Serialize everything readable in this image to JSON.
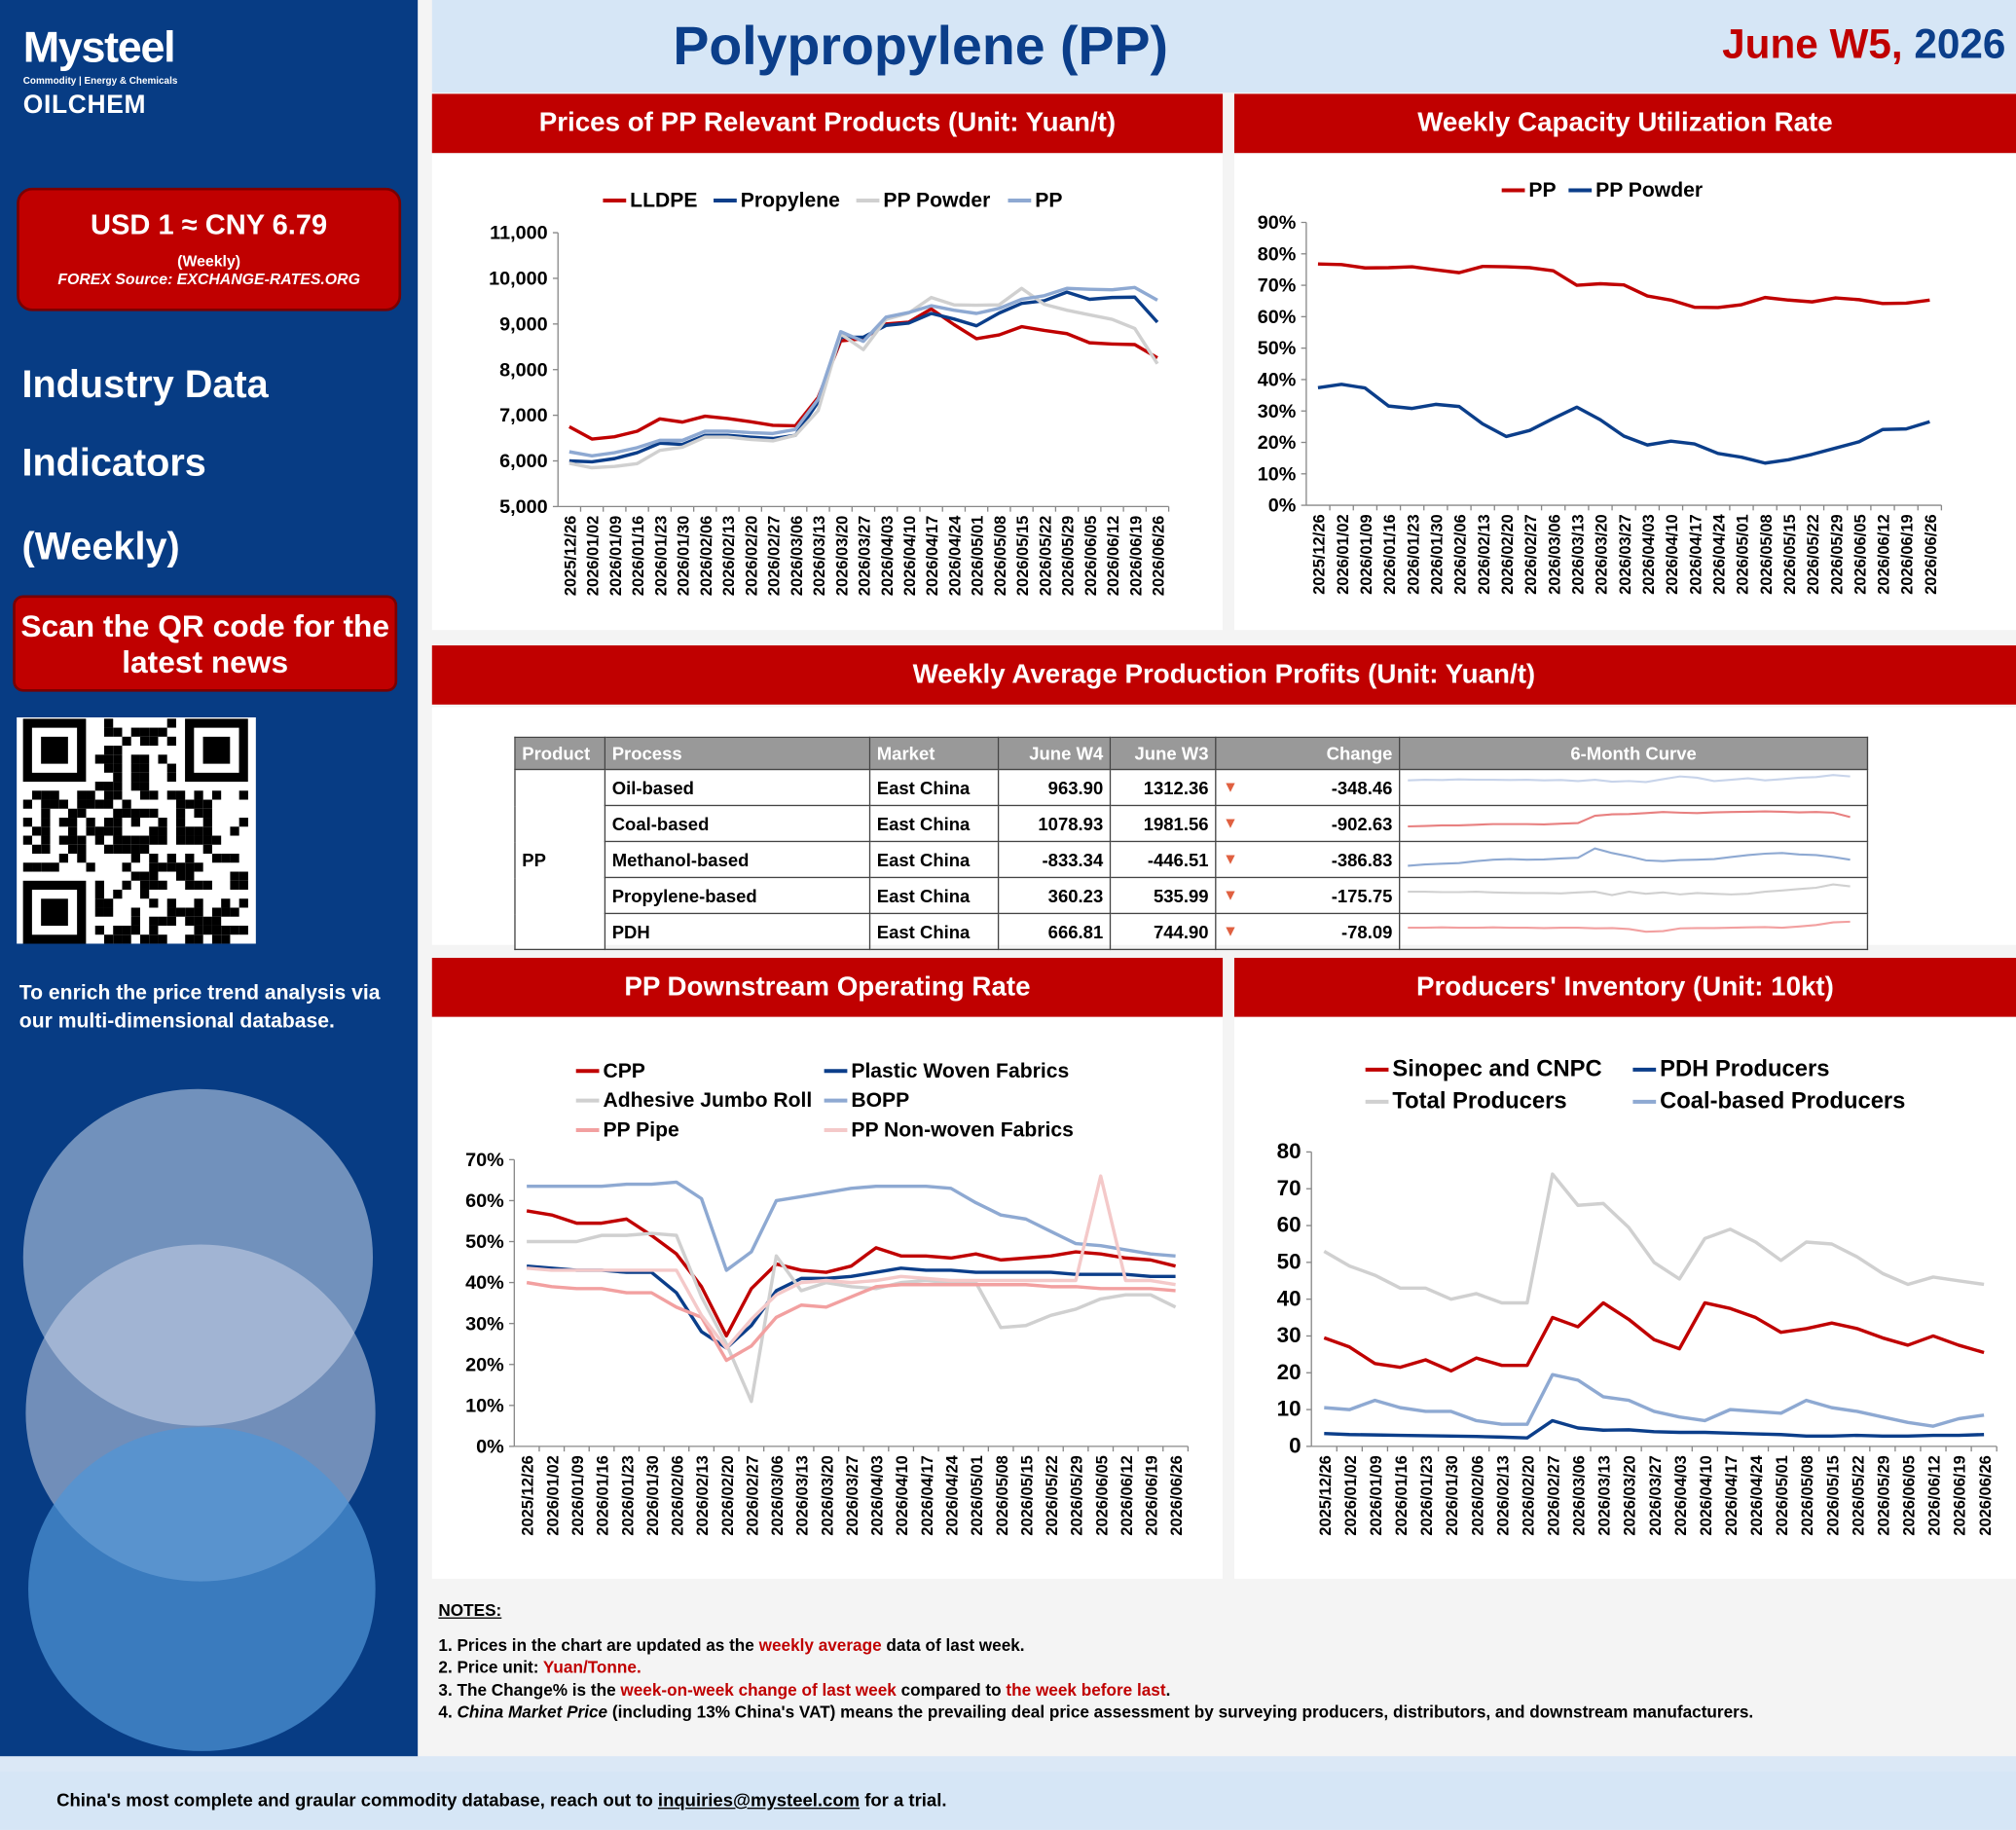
{
  "logo": {
    "brand": "Mysteel",
    "tagline": "Commodity | Energy & Chemicals",
    "sub": "OILCHEM"
  },
  "fx": {
    "rate": "USD 1 ≈ CNY 6.79",
    "period": "(Weekly)",
    "source": "FOREX Source: EXCHANGE-RATES.ORG"
  },
  "sidebar": {
    "h1": "Industry Data",
    "h2": "Indicators",
    "h3": "(Weekly)",
    "qr_button": "Scan the QR code for the latest news",
    "enrich": "To enrich the price trend analysis via our multi-dimensional database."
  },
  "header": {
    "title": "Polypropylene (PP)",
    "date_red": "June W5,",
    "date_blue": "2026"
  },
  "colors": {
    "red": "#c00000",
    "blue": "#0b3e8a",
    "navy": "#073c84",
    "lightgray": "#d0d0d0",
    "lightblue": "#8ea9d2",
    "pink": "#f2a0a0",
    "lightpink": "#f4c9c9",
    "gray": "#c8c8c8"
  },
  "dates": [
    "2025/12/26",
    "2026/01/02",
    "2026/01/09",
    "2026/01/16",
    "2026/01/23",
    "2026/01/30",
    "2026/02/06",
    "2026/02/13",
    "2026/02/20",
    "2026/02/27",
    "2026/03/06",
    "2026/03/13",
    "2026/03/20",
    "2026/03/27",
    "2026/04/03",
    "2026/04/10",
    "2026/04/17",
    "2026/04/24",
    "2026/05/01",
    "2026/05/08",
    "2026/05/15",
    "2026/05/22",
    "2026/05/29",
    "2026/06/05",
    "2026/06/12",
    "2026/06/19",
    "2026/06/26"
  ],
  "chart_data": [
    {
      "type": "line",
      "title": "Prices of  PP Relevant Products (Unit: Yuan/t)",
      "ylim": [
        5000,
        11000
      ],
      "yticks": [
        "5,000",
        "6,000",
        "7,000",
        "8,000",
        "9,000",
        "10,000",
        "11,000"
      ],
      "series": [
        {
          "name": "LLDPE",
          "color": "#c00000",
          "values": [
            6750,
            6480,
            6530,
            6650,
            6920,
            6850,
            6980,
            6930,
            6860,
            6780,
            6770,
            7390,
            8630,
            8680,
            9000,
            9040,
            9330,
            8990,
            8680,
            8760,
            8940,
            8860,
            8790,
            8590,
            8560,
            8550,
            8260
          ]
        },
        {
          "name": "Propylene",
          "color": "#0b3e8a",
          "values": [
            6000,
            5980,
            6050,
            6180,
            6390,
            6360,
            6560,
            6560,
            6520,
            6490,
            6560,
            7290,
            8710,
            8710,
            8970,
            9020,
            9230,
            9110,
            8960,
            9240,
            9450,
            9510,
            9700,
            9540,
            9580,
            9590,
            9040
          ]
        },
        {
          "name": "PP Powder",
          "color": "#d0d0d0",
          "values": [
            5950,
            5850,
            5880,
            5940,
            6230,
            6300,
            6520,
            6520,
            6470,
            6440,
            6560,
            7100,
            8780,
            8440,
            9100,
            9240,
            9580,
            9420,
            9410,
            9420,
            9780,
            9430,
            9300,
            9200,
            9100,
            8900,
            8130
          ]
        },
        {
          "name": "PP",
          "color": "#8ea9d2",
          "values": [
            6200,
            6110,
            6180,
            6290,
            6450,
            6450,
            6650,
            6650,
            6620,
            6600,
            6690,
            7350,
            8830,
            8620,
            9150,
            9250,
            9400,
            9300,
            9230,
            9340,
            9540,
            9620,
            9780,
            9760,
            9750,
            9800,
            9520
          ]
        }
      ]
    },
    {
      "type": "line",
      "title": "Weekly Capacity Utilization Rate",
      "ylim": [
        0,
        90
      ],
      "yticks": [
        "0%",
        "10%",
        "20%",
        "30%",
        "40%",
        "50%",
        "60%",
        "70%",
        "80%",
        "90%"
      ],
      "series": [
        {
          "name": "PP",
          "color": "#c00000",
          "values": [
            76.8,
            76.6,
            75.5,
            75.6,
            75.9,
            74.9,
            74.0,
            76.0,
            75.9,
            75.6,
            74.6,
            70.0,
            70.5,
            70.1,
            66.6,
            65.3,
            63.0,
            62.9,
            63.8,
            66.1,
            65.3,
            64.7,
            66.0,
            65.4,
            64.2,
            64.3,
            65.3
          ]
        },
        {
          "name": "PP Powder",
          "color": "#0b3e8a",
          "values": [
            37.4,
            38.5,
            37.3,
            31.6,
            30.8,
            32.1,
            31.4,
            25.9,
            21.9,
            23.8,
            27.6,
            31.2,
            27.2,
            22.0,
            19.2,
            20.4,
            19.5,
            16.5,
            15.3,
            13.4,
            14.5,
            16.2,
            18.2,
            20.2,
            24.1,
            24.3,
            26.6
          ]
        }
      ]
    },
    {
      "type": "line",
      "title": "PP Downstream Operating Rate",
      "ylim": [
        0,
        70
      ],
      "yticks": [
        "0%",
        "10%",
        "20%",
        "30%",
        "40%",
        "50%",
        "60%",
        "70%"
      ],
      "series": [
        {
          "name": "CPP",
          "color": "#c00000",
          "values": [
            57.5,
            56.5,
            54.5,
            54.5,
            55.5,
            51.5,
            47.0,
            39.0,
            27.0,
            38.5,
            44.5,
            43.0,
            42.5,
            44.0,
            48.5,
            46.5,
            46.5,
            46.0,
            47.0,
            45.5,
            46.0,
            46.5,
            47.5,
            47.0,
            46.0,
            45.5,
            44.0
          ]
        },
        {
          "name": "Plastic Woven Fabrics",
          "color": "#0b3e8a",
          "values": [
            44.0,
            43.5,
            43.0,
            43.0,
            42.5,
            42.5,
            37.5,
            28.0,
            24.0,
            29.5,
            38.0,
            41.0,
            41.0,
            41.5,
            42.5,
            43.5,
            43.0,
            43.0,
            42.5,
            42.5,
            42.5,
            42.5,
            42.0,
            42.0,
            42.0,
            41.5,
            41.5
          ]
        },
        {
          "name": "Adhesive Jumbo Roll",
          "color": "#d0d0d0",
          "values": [
            50.0,
            50.0,
            50.0,
            51.5,
            51.5,
            52.0,
            51.5,
            36.5,
            25.0,
            11.0,
            46.5,
            38.0,
            40.0,
            39.0,
            38.5,
            40.0,
            40.5,
            40.0,
            40.0,
            29.0,
            29.5,
            32.0,
            33.5,
            36.0,
            37.0,
            37.0,
            34.0
          ]
        },
        {
          "name": "BOPP",
          "color": "#8ea9d2",
          "values": [
            63.5,
            63.5,
            63.5,
            63.5,
            64.0,
            64.0,
            64.5,
            60.5,
            43.0,
            47.5,
            60.0,
            61.0,
            62.0,
            63.0,
            63.5,
            63.5,
            63.5,
            63.0,
            59.5,
            56.5,
            55.5,
            52.5,
            49.5,
            49.0,
            48.0,
            47.0,
            46.5
          ]
        },
        {
          "name": "PP Pipe",
          "color": "#f2a0a0",
          "values": [
            40.0,
            39.0,
            38.5,
            38.5,
            37.5,
            37.5,
            34.0,
            31.5,
            21.0,
            24.5,
            31.5,
            34.5,
            34.0,
            36.5,
            39.0,
            39.5,
            39.5,
            39.5,
            39.5,
            39.5,
            39.5,
            39.0,
            39.0,
            38.5,
            38.5,
            38.5,
            38.0
          ]
        },
        {
          "name": "PP Non-woven Fabrics",
          "color": "#f4c9c9",
          "values": [
            43.5,
            43.0,
            43.0,
            43.0,
            43.0,
            43.0,
            43.0,
            32.0,
            24.0,
            31.0,
            37.0,
            40.0,
            40.5,
            40.0,
            40.5,
            41.5,
            41.0,
            40.5,
            40.5,
            40.5,
            40.5,
            40.5,
            40.5,
            66.0,
            40.5,
            40.5,
            39.5
          ]
        }
      ]
    },
    {
      "type": "line",
      "title": "Producers' Inventory (Unit: 10kt)",
      "ylim": [
        0,
        80
      ],
      "yticks": [
        "0",
        "10",
        "20",
        "30",
        "40",
        "50",
        "60",
        "70",
        "80"
      ],
      "series": [
        {
          "name": "Sinopec and CNPC",
          "color": "#c00000",
          "values": [
            29.5,
            27.0,
            22.5,
            21.5,
            23.5,
            20.5,
            24.0,
            22.0,
            22.0,
            35.0,
            32.5,
            39.0,
            34.5,
            29.0,
            26.5,
            39.0,
            37.5,
            35.0,
            31.0,
            32.0,
            33.5,
            32.0,
            29.5,
            27.5,
            30.0,
            27.5,
            25.5
          ]
        },
        {
          "name": "PDH Producers",
          "color": "#0b3e8a",
          "values": [
            3.5,
            3.2,
            3.1,
            3.0,
            2.9,
            2.8,
            2.7,
            2.5,
            2.3,
            7.0,
            5.0,
            4.4,
            4.5,
            4.0,
            3.8,
            3.8,
            3.6,
            3.4,
            3.2,
            2.8,
            2.8,
            3.0,
            2.8,
            2.8,
            3.0,
            3.0,
            3.2
          ]
        },
        {
          "name": "Total Producers",
          "color": "#d0d0d0",
          "values": [
            53.0,
            49.0,
            46.5,
            43.0,
            43.0,
            40.0,
            41.5,
            39.0,
            39.0,
            74.0,
            65.5,
            66.0,
            59.5,
            50.0,
            45.5,
            56.5,
            59.0,
            55.5,
            50.5,
            55.5,
            55.0,
            51.5,
            47.0,
            44.0,
            46.0,
            45.0,
            44.0
          ]
        },
        {
          "name": "Coal-based Producers",
          "color": "#8ea9d2",
          "values": [
            10.5,
            10.0,
            12.5,
            10.5,
            9.5,
            9.5,
            7.0,
            6.0,
            6.0,
            19.5,
            18.0,
            13.5,
            12.5,
            9.5,
            8.0,
            7.0,
            10.0,
            9.5,
            9.0,
            12.5,
            10.5,
            9.5,
            8.0,
            6.5,
            5.5,
            7.5,
            8.5
          ]
        }
      ]
    },
    {
      "type": "table",
      "title": "Weekly Average Production Profits (Unit: Yuan/t)",
      "columns": [
        "Product",
        "Process",
        "Market",
        "June W4",
        "June W3",
        "Change",
        "6-Month Curve"
      ],
      "product": "PP",
      "rows": [
        {
          "process": "Oil-based",
          "market": "East China",
          "w4": "963.90",
          "w3": "1312.36",
          "change": "-348.46",
          "color": "#c8d4ea",
          "spark": [
            50,
            52,
            51,
            53,
            52,
            52,
            51,
            52,
            50,
            51,
            48,
            52,
            46,
            48,
            45,
            54,
            62,
            58,
            48,
            52,
            56,
            50,
            54,
            58,
            60,
            66,
            62
          ]
        },
        {
          "process": "Coal-based",
          "market": "East China",
          "w4": "1078.93",
          "w3": "1981.56",
          "change": "-902.63",
          "color": "#e88080",
          "spark": [
            20,
            21,
            23,
            23,
            25,
            27,
            27,
            27,
            26,
            28,
            30,
            52,
            56,
            57,
            60,
            63,
            61,
            60,
            62,
            63,
            64,
            65,
            64,
            62,
            63,
            61,
            48
          ]
        },
        {
          "process": "Methanol-based",
          "market": "East China",
          "w4": "-833.34",
          "w3": "-446.51",
          "change": "-386.83",
          "color": "#8ea9d2",
          "spark": [
            10,
            14,
            16,
            18,
            24,
            28,
            30,
            28,
            29,
            32,
            34,
            62,
            48,
            38,
            26,
            24,
            27,
            28,
            30,
            36,
            42,
            46,
            48,
            44,
            42,
            36,
            28
          ]
        },
        {
          "process": "Propylene-based",
          "market": "East China",
          "w4": "360.23",
          "w3": "535.99",
          "change": "-175.75",
          "color": "#d0d0d0",
          "spark": [
            40,
            40,
            39,
            39,
            40,
            38,
            37,
            36,
            36,
            35,
            38,
            40,
            30,
            40,
            34,
            38,
            32,
            36,
            34,
            32,
            34,
            40,
            44,
            48,
            52,
            62,
            56
          ]
        },
        {
          "process": "PDH",
          "market": "East China",
          "w4": "666.81",
          "w3": "744.90",
          "change": "-78.09",
          "color": "#f2a0a0",
          "spark": [
            40,
            40,
            41,
            40,
            40,
            41,
            40,
            40,
            39,
            40,
            40,
            38,
            39,
            36,
            28,
            30,
            38,
            39,
            39,
            40,
            41,
            42,
            40,
            44,
            48,
            56,
            58
          ]
        }
      ]
    }
  ],
  "legends": {
    "prices": [
      "LLDPE",
      "Propylene",
      "PP Powder",
      "PP"
    ],
    "util": [
      "PP",
      "PP Powder"
    ],
    "downstream": [
      "CPP",
      "Plastic Woven Fabrics",
      "Adhesive Jumbo Roll",
      "BOPP",
      "PP Pipe",
      "PP Non-woven Fabrics"
    ],
    "inventory": [
      "Sinopec and CNPC",
      "PDH Producers",
      "Total Producers",
      "Coal-based Producers"
    ]
  },
  "notes": {
    "title": "NOTES:",
    "n1a": "1. Prices in the chart are updated as the ",
    "n1b": "weekly average",
    "n1c": " data of last week.",
    "n2a": "2. Price unit: ",
    "n2b": "Yuan/Tonne.",
    "n3a": "3. The Change% is the ",
    "n3b": "week-on-week change of last week",
    "n3c": " compared to ",
    "n3d": "the week before last",
    "n3e": ".",
    "n4a": "China Market Price",
    "n4b": " (including 13% China's VAT) means the prevailing deal price assessment by surveying producers, distributors, and downstream manufacturers.",
    "n4pre": "4. "
  },
  "footer": {
    "text": "China's most complete and graular commodity database, reach out to ",
    "email": "inquiries@mysteel.com",
    "tail": " for a trial."
  }
}
